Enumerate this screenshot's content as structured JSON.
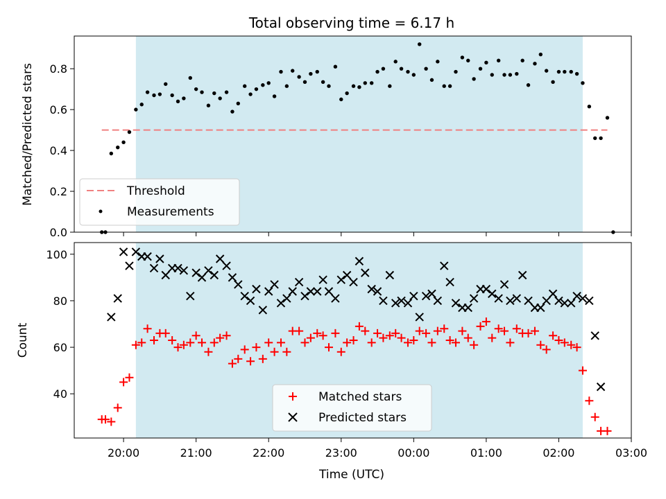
{
  "figure": {
    "title": "Total observing time = 6.17 h",
    "xlabel": "Time (UTC)"
  },
  "colors": {
    "observing_window": "#add8e6",
    "threshold": "#f08080",
    "matched": "#ff0000",
    "predicted": "#000000",
    "measurements": "#000000"
  },
  "chart_data": [
    {
      "type": "scatter",
      "panel": "top",
      "ylabel": "Matched/Predicted stars",
      "x_unit": "hours after 20:00 UTC",
      "xlim": [
        -0.68,
        7.0
      ],
      "ylim": [
        0,
        0.96
      ],
      "yticks": [
        0.0,
        0.2,
        0.4,
        0.6,
        0.8
      ],
      "ytick_labels": [
        "0.0",
        "0.2",
        "0.4",
        "0.6",
        "0.8"
      ],
      "shaded_interval": [
        0.17,
        6.33
      ],
      "legend": {
        "placement": "lower-left",
        "entries": [
          "Threshold",
          "Measurements"
        ]
      },
      "threshold": {
        "name": "Threshold",
        "value": 0.5,
        "x_range": [
          -0.3,
          6.67
        ]
      },
      "series": [
        {
          "name": "Measurements",
          "points": [
            [
              -0.3,
              0.0
            ],
            [
              -0.25,
              0.0
            ],
            [
              -0.17,
              0.385
            ],
            [
              -0.08,
              0.415
            ],
            [
              0.0,
              0.44
            ],
            [
              0.08,
              0.49
            ],
            [
              0.17,
              0.6
            ],
            [
              0.25,
              0.625
            ],
            [
              0.33,
              0.685
            ],
            [
              0.42,
              0.67
            ],
            [
              0.5,
              0.675
            ],
            [
              0.58,
              0.725
            ],
            [
              0.67,
              0.67
            ],
            [
              0.75,
              0.64
            ],
            [
              0.83,
              0.655
            ],
            [
              0.92,
              0.755
            ],
            [
              1.0,
              0.7
            ],
            [
              1.08,
              0.685
            ],
            [
              1.17,
              0.62
            ],
            [
              1.25,
              0.68
            ],
            [
              1.33,
              0.655
            ],
            [
              1.42,
              0.685
            ],
            [
              1.5,
              0.59
            ],
            [
              1.58,
              0.63
            ],
            [
              1.67,
              0.715
            ],
            [
              1.75,
              0.675
            ],
            [
              1.83,
              0.7
            ],
            [
              1.92,
              0.72
            ],
            [
              2.0,
              0.73
            ],
            [
              2.08,
              0.665
            ],
            [
              2.17,
              0.785
            ],
            [
              2.25,
              0.715
            ],
            [
              2.33,
              0.79
            ],
            [
              2.42,
              0.76
            ],
            [
              2.5,
              0.735
            ],
            [
              2.58,
              0.775
            ],
            [
              2.67,
              0.785
            ],
            [
              2.75,
              0.735
            ],
            [
              2.83,
              0.715
            ],
            [
              2.92,
              0.81
            ],
            [
              3.0,
              0.65
            ],
            [
              3.08,
              0.68
            ],
            [
              3.17,
              0.715
            ],
            [
              3.25,
              0.71
            ],
            [
              3.33,
              0.73
            ],
            [
              3.42,
              0.73
            ],
            [
              3.5,
              0.785
            ],
            [
              3.58,
              0.8
            ],
            [
              3.67,
              0.715
            ],
            [
              3.75,
              0.835
            ],
            [
              3.83,
              0.8
            ],
            [
              3.92,
              0.785
            ],
            [
              4.0,
              0.77
            ],
            [
              4.08,
              0.92
            ],
            [
              4.17,
              0.8
            ],
            [
              4.25,
              0.745
            ],
            [
              4.33,
              0.835
            ],
            [
              4.42,
              0.715
            ],
            [
              4.5,
              0.715
            ],
            [
              4.58,
              0.785
            ],
            [
              4.67,
              0.855
            ],
            [
              4.75,
              0.84
            ],
            [
              4.83,
              0.75
            ],
            [
              4.92,
              0.8
            ],
            [
              5.0,
              0.83
            ],
            [
              5.08,
              0.77
            ],
            [
              5.17,
              0.84
            ],
            [
              5.25,
              0.77
            ],
            [
              5.33,
              0.77
            ],
            [
              5.42,
              0.775
            ],
            [
              5.5,
              0.84
            ],
            [
              5.58,
              0.72
            ],
            [
              5.67,
              0.825
            ],
            [
              5.75,
              0.87
            ],
            [
              5.83,
              0.79
            ],
            [
              5.92,
              0.735
            ],
            [
              6.0,
              0.785
            ],
            [
              6.08,
              0.785
            ],
            [
              6.17,
              0.785
            ],
            [
              6.25,
              0.775
            ],
            [
              6.33,
              0.73
            ],
            [
              6.42,
              0.615
            ],
            [
              6.5,
              0.46
            ],
            [
              6.58,
              0.46
            ],
            [
              6.67,
              0.56
            ],
            [
              6.75,
              0.0
            ]
          ]
        }
      ]
    },
    {
      "type": "scatter",
      "panel": "bottom",
      "ylabel": "Count",
      "x_unit": "hours after 20:00 UTC",
      "xlim": [
        -0.68,
        7.0
      ],
      "ylim": [
        21,
        105
      ],
      "yticks": [
        40,
        60,
        80,
        100
      ],
      "ytick_labels": [
        "40",
        "60",
        "80",
        "100"
      ],
      "xticks": [
        0,
        1,
        2,
        3,
        4,
        5,
        6,
        7
      ],
      "xtick_labels": [
        "20:00",
        "21:00",
        "22:00",
        "23:00",
        "00:00",
        "01:00",
        "02:00",
        "03:00"
      ],
      "shaded_interval": [
        0.17,
        6.33
      ],
      "legend": {
        "placement": "lower-center",
        "entries": [
          "Matched stars",
          "Predicted stars"
        ]
      },
      "series": [
        {
          "name": "Matched stars",
          "marker": "+",
          "points": [
            [
              -0.3,
              29
            ],
            [
              -0.25,
              29
            ],
            [
              -0.17,
              28
            ],
            [
              -0.08,
              34
            ],
            [
              0.0,
              45
            ],
            [
              0.08,
              47
            ],
            [
              0.17,
              61
            ],
            [
              0.25,
              62
            ],
            [
              0.33,
              68
            ],
            [
              0.42,
              63
            ],
            [
              0.5,
              66
            ],
            [
              0.58,
              66
            ],
            [
              0.67,
              63
            ],
            [
              0.75,
              60
            ],
            [
              0.83,
              61
            ],
            [
              0.92,
              62
            ],
            [
              1.0,
              65
            ],
            [
              1.08,
              62
            ],
            [
              1.17,
              58
            ],
            [
              1.25,
              62
            ],
            [
              1.33,
              64
            ],
            [
              1.42,
              65
            ],
            [
              1.5,
              53
            ],
            [
              1.58,
              55
            ],
            [
              1.67,
              59
            ],
            [
              1.75,
              54
            ],
            [
              1.83,
              60
            ],
            [
              1.92,
              55
            ],
            [
              2.0,
              62
            ],
            [
              2.08,
              58
            ],
            [
              2.17,
              62
            ],
            [
              2.25,
              58
            ],
            [
              2.33,
              67
            ],
            [
              2.42,
              67
            ],
            [
              2.5,
              62
            ],
            [
              2.58,
              64
            ],
            [
              2.67,
              66
            ],
            [
              2.75,
              65
            ],
            [
              2.83,
              60
            ],
            [
              2.92,
              66
            ],
            [
              3.0,
              58
            ],
            [
              3.08,
              62
            ],
            [
              3.17,
              63
            ],
            [
              3.25,
              69
            ],
            [
              3.33,
              67
            ],
            [
              3.42,
              62
            ],
            [
              3.5,
              66
            ],
            [
              3.58,
              64
            ],
            [
              3.67,
              65
            ],
            [
              3.75,
              66
            ],
            [
              3.83,
              64
            ],
            [
              3.92,
              62
            ],
            [
              4.0,
              63
            ],
            [
              4.08,
              67
            ],
            [
              4.17,
              66
            ],
            [
              4.25,
              62
            ],
            [
              4.33,
              67
            ],
            [
              4.42,
              68
            ],
            [
              4.5,
              63
            ],
            [
              4.58,
              62
            ],
            [
              4.67,
              67
            ],
            [
              4.75,
              64
            ],
            [
              4.83,
              61
            ],
            [
              4.92,
              69
            ],
            [
              5.0,
              71
            ],
            [
              5.08,
              64
            ],
            [
              5.17,
              68
            ],
            [
              5.25,
              67
            ],
            [
              5.33,
              62
            ],
            [
              5.42,
              68
            ],
            [
              5.5,
              66
            ],
            [
              5.58,
              66
            ],
            [
              5.67,
              67
            ],
            [
              5.75,
              61
            ],
            [
              5.83,
              59
            ],
            [
              5.92,
              65
            ],
            [
              6.0,
              63
            ],
            [
              6.08,
              62
            ],
            [
              6.17,
              61
            ],
            [
              6.25,
              60
            ],
            [
              6.33,
              50
            ],
            [
              6.42,
              37
            ],
            [
              6.5,
              30
            ],
            [
              6.58,
              24
            ],
            [
              6.67,
              24
            ]
          ]
        },
        {
          "name": "Predicted stars",
          "marker": "x",
          "points": [
            [
              -0.17,
              73
            ],
            [
              -0.08,
              81
            ],
            [
              0.0,
              101
            ],
            [
              0.08,
              95
            ],
            [
              0.17,
              101
            ],
            [
              0.25,
              99
            ],
            [
              0.33,
              99
            ],
            [
              0.42,
              94
            ],
            [
              0.5,
              98
            ],
            [
              0.58,
              91
            ],
            [
              0.67,
              94
            ],
            [
              0.75,
              94
            ],
            [
              0.83,
              93
            ],
            [
              0.92,
              82
            ],
            [
              1.0,
              92
            ],
            [
              1.08,
              90
            ],
            [
              1.17,
              93
            ],
            [
              1.25,
              91
            ],
            [
              1.33,
              98
            ],
            [
              1.42,
              95
            ],
            [
              1.5,
              90
            ],
            [
              1.58,
              87
            ],
            [
              1.67,
              82
            ],
            [
              1.75,
              80
            ],
            [
              1.83,
              85
            ],
            [
              1.92,
              76
            ],
            [
              2.0,
              84
            ],
            [
              2.08,
              87
            ],
            [
              2.17,
              79
            ],
            [
              2.25,
              81
            ],
            [
              2.33,
              84
            ],
            [
              2.42,
              88
            ],
            [
              2.5,
              82
            ],
            [
              2.58,
              84
            ],
            [
              2.67,
              84
            ],
            [
              2.75,
              89
            ],
            [
              2.83,
              84
            ],
            [
              2.92,
              81
            ],
            [
              3.0,
              89
            ],
            [
              3.08,
              91
            ],
            [
              3.17,
              88
            ],
            [
              3.25,
              97
            ],
            [
              3.33,
              92
            ],
            [
              3.42,
              85
            ],
            [
              3.5,
              84
            ],
            [
              3.58,
              80
            ],
            [
              3.67,
              91
            ],
            [
              3.75,
              79
            ],
            [
              3.83,
              80
            ],
            [
              3.92,
              79
            ],
            [
              4.0,
              82
            ],
            [
              4.08,
              73
            ],
            [
              4.17,
              82
            ],
            [
              4.25,
              83
            ],
            [
              4.33,
              80
            ],
            [
              4.42,
              95
            ],
            [
              4.5,
              88
            ],
            [
              4.58,
              79
            ],
            [
              4.67,
              77
            ],
            [
              4.75,
              77
            ],
            [
              4.83,
              81
            ],
            [
              4.92,
              85
            ],
            [
              5.0,
              85
            ],
            [
              5.08,
              83
            ],
            [
              5.17,
              81
            ],
            [
              5.25,
              87
            ],
            [
              5.33,
              80
            ],
            [
              5.42,
              81
            ],
            [
              5.5,
              91
            ],
            [
              5.58,
              80
            ],
            [
              5.67,
              77
            ],
            [
              5.75,
              77
            ],
            [
              5.83,
              80
            ],
            [
              5.92,
              83
            ],
            [
              6.0,
              80
            ],
            [
              6.08,
              79
            ],
            [
              6.17,
              79
            ],
            [
              6.25,
              82
            ],
            [
              6.33,
              81
            ],
            [
              6.42,
              80
            ],
            [
              6.5,
              65
            ],
            [
              6.58,
              43
            ]
          ]
        }
      ]
    }
  ]
}
